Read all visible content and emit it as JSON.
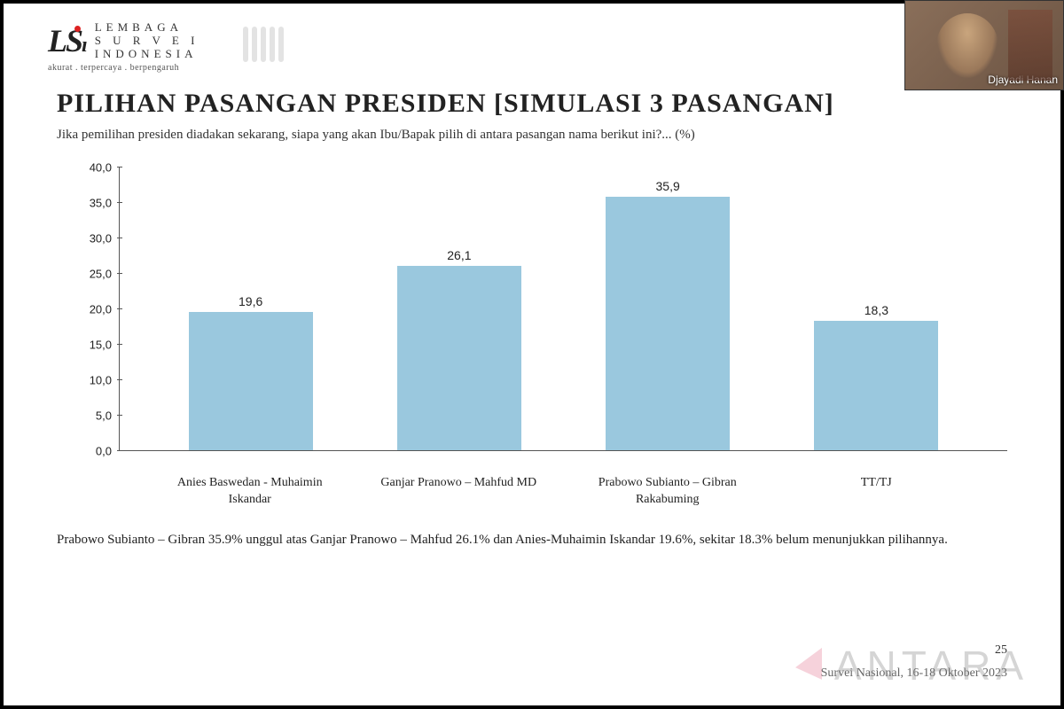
{
  "logo": {
    "mark": "LS",
    "lines": [
      "LEMBAGA",
      "S U R V E I",
      "INDONESIA"
    ],
    "tagline": "akurat . terpercaya . berpengaruh"
  },
  "video": {
    "name": "Djayadi Hanan"
  },
  "title": "PILIHAN PASANGAN PRESIDEN [SIMULASI 3 PASANGAN]",
  "subtitle": "Jika pemilihan presiden diadakan sekarang, siapa yang akan Ibu/Bapak pilih di antara pasangan nama berikut ini?... (%)",
  "chart": {
    "type": "bar",
    "ylim": [
      0,
      40
    ],
    "ytick_step": 5,
    "y_decimal_sep": ",",
    "bar_color": "#9ac8de",
    "axis_color": "#555555",
    "label_fontsize": 14,
    "categories": [
      "Anies Baswedan - Muhaimin Iskandar",
      "Ganjar Pranowo – Mahfud MD",
      "Prabowo Subianto – Gibran Rakabuming",
      "TT/TJ"
    ],
    "values": [
      19.6,
      26.1,
      35.9,
      18.3
    ],
    "value_labels": [
      "19,6",
      "26,1",
      "35,9",
      "18,3"
    ]
  },
  "footnote": "Prabowo Subianto – Gibran 35.9% unggul atas Ganjar Pranowo – Mahfud 26.1% dan Anies-Muhaimin Iskandar 19.6%, sekitar 18.3% belum menunjukkan pilihannya.",
  "page_number": "25",
  "survey_date": "Survei Nasional, 16-18 Oktober 2023",
  "watermark": "ANTARA"
}
